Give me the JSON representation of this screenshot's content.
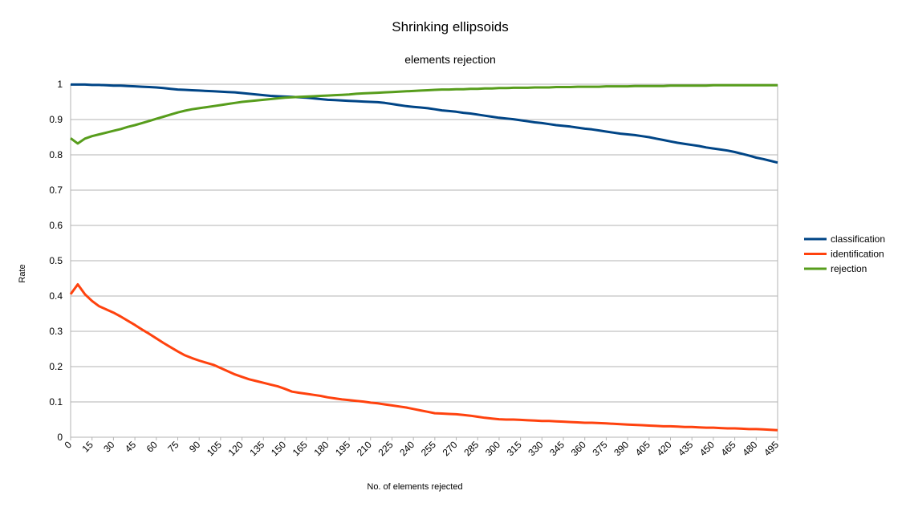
{
  "chart_data": {
    "type": "line",
    "title": "Shrinking ellipsoids",
    "subtitle": "elements rejection",
    "xlabel": "No. of elements rejected",
    "ylabel": "Rate",
    "ylim": [
      0,
      1
    ],
    "yticks": [
      "0",
      "0.1",
      "0.2",
      "0.3",
      "0.4",
      "0.5",
      "0.6",
      "0.7",
      "0.8",
      "0.9",
      "1"
    ],
    "xticks": [
      "0",
      "15",
      "30",
      "45",
      "60",
      "75",
      "90",
      "105",
      "120",
      "135",
      "150",
      "165",
      "180",
      "195",
      "210",
      "225",
      "240",
      "255",
      "270",
      "285",
      "300",
      "315",
      "330",
      "345",
      "360",
      "375",
      "390",
      "405",
      "420",
      "435",
      "450",
      "465",
      "480",
      "495"
    ],
    "grid": true,
    "legend_position": "right",
    "x": [
      0,
      5,
      10,
      15,
      20,
      25,
      30,
      35,
      40,
      45,
      50,
      55,
      60,
      65,
      70,
      75,
      80,
      85,
      90,
      95,
      100,
      105,
      110,
      115,
      120,
      125,
      130,
      135,
      140,
      145,
      150,
      155,
      160,
      165,
      170,
      175,
      180,
      185,
      190,
      195,
      200,
      205,
      210,
      215,
      220,
      225,
      230,
      235,
      240,
      245,
      250,
      255,
      260,
      265,
      270,
      275,
      280,
      285,
      290,
      295,
      300,
      305,
      310,
      315,
      320,
      325,
      330,
      335,
      340,
      345,
      350,
      355,
      360,
      365,
      370,
      375,
      380,
      385,
      390,
      395,
      400,
      405,
      410,
      415,
      420,
      425,
      430,
      435,
      440,
      445,
      450,
      455,
      460,
      465,
      470,
      475,
      480,
      485,
      490,
      495
    ],
    "series": [
      {
        "name": "classification",
        "color": "#004586",
        "values": [
          0.999,
          0.999,
          0.999,
          0.998,
          0.998,
          0.997,
          0.996,
          0.996,
          0.995,
          0.994,
          0.993,
          0.992,
          0.991,
          0.989,
          0.987,
          0.985,
          0.984,
          0.983,
          0.982,
          0.981,
          0.98,
          0.979,
          0.978,
          0.977,
          0.975,
          0.973,
          0.971,
          0.969,
          0.967,
          0.966,
          0.965,
          0.964,
          0.963,
          0.962,
          0.96,
          0.958,
          0.956,
          0.955,
          0.954,
          0.953,
          0.952,
          0.951,
          0.95,
          0.949,
          0.947,
          0.944,
          0.941,
          0.938,
          0.936,
          0.934,
          0.932,
          0.929,
          0.926,
          0.924,
          0.922,
          0.919,
          0.917,
          0.914,
          0.911,
          0.908,
          0.905,
          0.903,
          0.901,
          0.898,
          0.895,
          0.892,
          0.89,
          0.887,
          0.884,
          0.882,
          0.88,
          0.877,
          0.874,
          0.872,
          0.869,
          0.866,
          0.863,
          0.86,
          0.858,
          0.856,
          0.853,
          0.85,
          0.846,
          0.842,
          0.838,
          0.834,
          0.831,
          0.828,
          0.825,
          0.821,
          0.818,
          0.815,
          0.812,
          0.808,
          0.803,
          0.798,
          0.792,
          0.788,
          0.783,
          0.778
        ]
      },
      {
        "name": "identification",
        "color": "#ff420e",
        "values": [
          0.405,
          0.433,
          0.405,
          0.386,
          0.371,
          0.362,
          0.353,
          0.342,
          0.33,
          0.318,
          0.305,
          0.293,
          0.28,
          0.267,
          0.255,
          0.243,
          0.232,
          0.224,
          0.217,
          0.211,
          0.205,
          0.196,
          0.187,
          0.178,
          0.171,
          0.164,
          0.159,
          0.154,
          0.149,
          0.144,
          0.137,
          0.129,
          0.126,
          0.123,
          0.12,
          0.117,
          0.113,
          0.11,
          0.107,
          0.105,
          0.103,
          0.101,
          0.098,
          0.096,
          0.093,
          0.09,
          0.087,
          0.084,
          0.08,
          0.076,
          0.072,
          0.068,
          0.067,
          0.066,
          0.065,
          0.063,
          0.061,
          0.058,
          0.055,
          0.053,
          0.051,
          0.05,
          0.05,
          0.049,
          0.048,
          0.047,
          0.046,
          0.046,
          0.045,
          0.044,
          0.043,
          0.042,
          0.041,
          0.041,
          0.04,
          0.039,
          0.038,
          0.037,
          0.036,
          0.035,
          0.034,
          0.033,
          0.032,
          0.031,
          0.031,
          0.03,
          0.029,
          0.029,
          0.028,
          0.027,
          0.027,
          0.026,
          0.025,
          0.025,
          0.024,
          0.023,
          0.023,
          0.022,
          0.021,
          0.02
        ]
      },
      {
        "name": "rejection",
        "color": "#579d1c",
        "values": [
          0.847,
          0.832,
          0.846,
          0.853,
          0.858,
          0.863,
          0.868,
          0.873,
          0.879,
          0.884,
          0.89,
          0.896,
          0.902,
          0.908,
          0.914,
          0.92,
          0.925,
          0.929,
          0.932,
          0.935,
          0.938,
          0.941,
          0.944,
          0.947,
          0.95,
          0.952,
          0.954,
          0.956,
          0.958,
          0.96,
          0.962,
          0.963,
          0.964,
          0.965,
          0.966,
          0.967,
          0.968,
          0.969,
          0.97,
          0.971,
          0.973,
          0.974,
          0.975,
          0.976,
          0.977,
          0.978,
          0.979,
          0.98,
          0.981,
          0.982,
          0.983,
          0.984,
          0.985,
          0.985,
          0.986,
          0.986,
          0.987,
          0.987,
          0.988,
          0.988,
          0.989,
          0.989,
          0.99,
          0.99,
          0.99,
          0.991,
          0.991,
          0.991,
          0.992,
          0.992,
          0.992,
          0.993,
          0.993,
          0.993,
          0.993,
          0.994,
          0.994,
          0.994,
          0.994,
          0.995,
          0.995,
          0.995,
          0.995,
          0.995,
          0.996,
          0.996,
          0.996,
          0.996,
          0.996,
          0.996,
          0.997,
          0.997,
          0.997,
          0.997,
          0.997,
          0.997,
          0.997,
          0.997,
          0.997,
          0.997
        ]
      }
    ]
  }
}
